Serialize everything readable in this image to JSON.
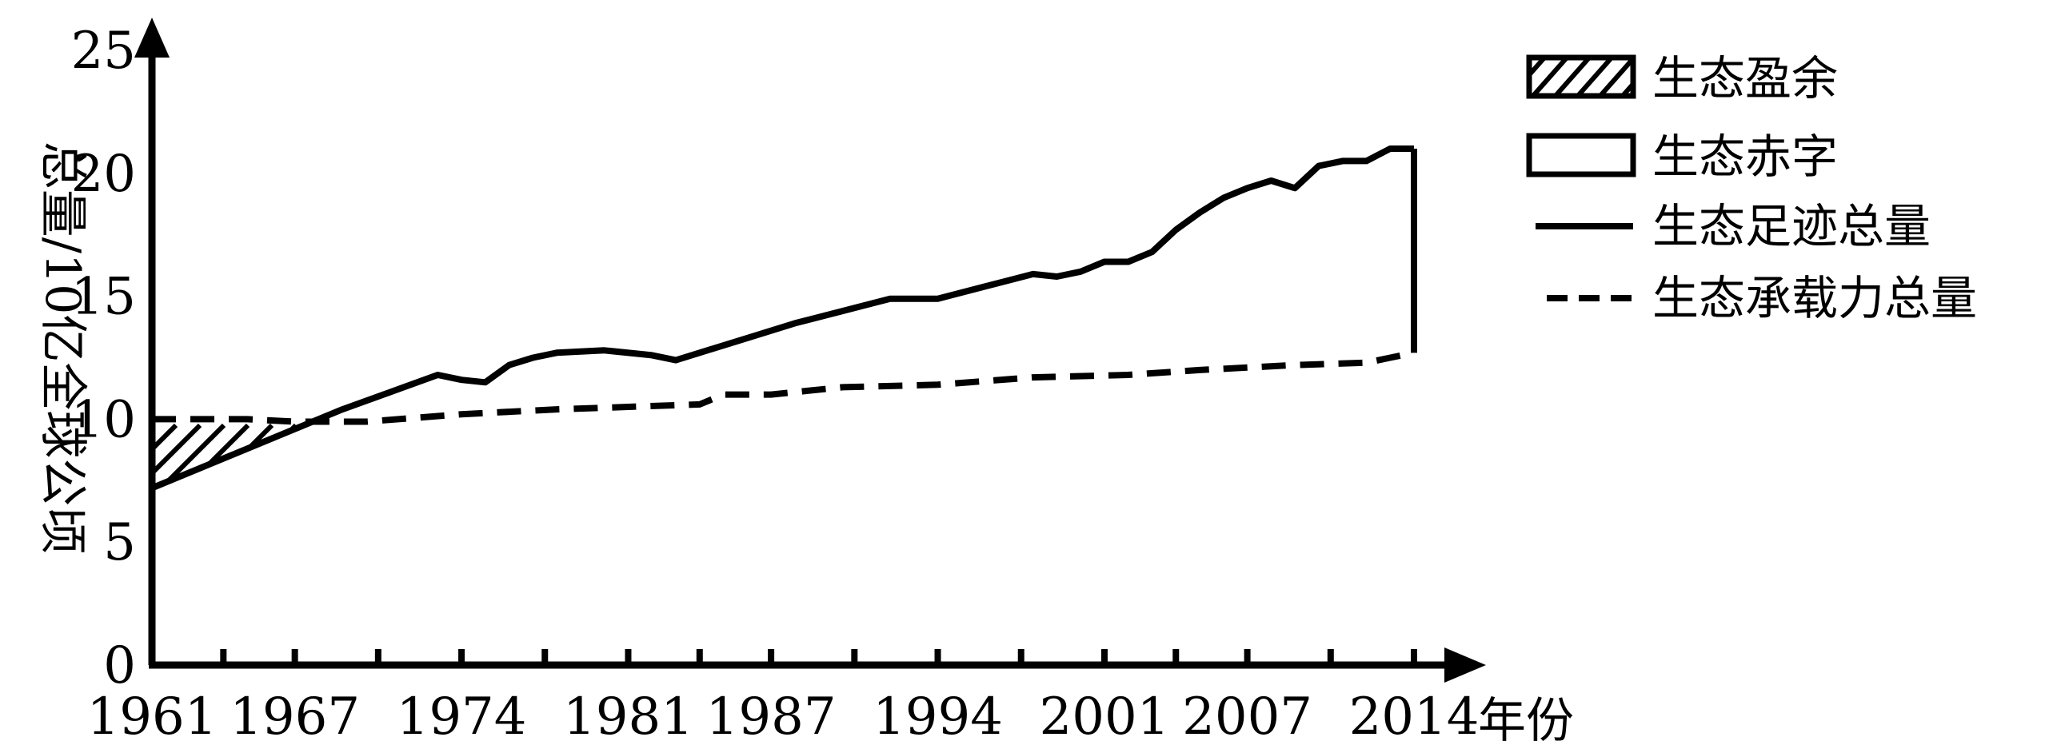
{
  "chart_data": {
    "type": "line",
    "xlabel": "年份",
    "ylabel": "总量/10亿全球公顷",
    "xlim": [
      1961,
      2014
    ],
    "ylim": [
      0,
      25
    ],
    "xticks": [
      1961,
      1967,
      1974,
      1981,
      1987,
      1994,
      2001,
      2007,
      2014
    ],
    "yticks": [
      0,
      5,
      10,
      15,
      20,
      25
    ],
    "legend_position": "top-right",
    "legend": [
      {
        "key": "surplus",
        "label": "生态盈余",
        "style": "hatched"
      },
      {
        "key": "deficit",
        "label": "生态赤字",
        "style": "open-box"
      },
      {
        "key": "footprint",
        "label": "生态足迹总量",
        "style": "solid-line"
      },
      {
        "key": "capacity",
        "label": "生态承载力总量",
        "style": "dashed-line"
      }
    ],
    "series": [
      {
        "key": "footprint",
        "x": [
          1961,
          1963,
          1965,
          1967,
          1969,
          1971,
          1973,
          1974,
          1975,
          1976,
          1977,
          1978,
          1980,
          1982,
          1983,
          1984,
          1986,
          1988,
          1990,
          1992,
          1993,
          1994,
          1996,
          1998,
          1999,
          2000,
          2001,
          2002,
          2003,
          2004,
          2005,
          2006,
          2007,
          2008,
          2009,
          2010,
          2011,
          2012,
          2013,
          2014
        ],
        "y": [
          7.2,
          8.0,
          8.8,
          9.6,
          10.4,
          11.1,
          11.8,
          11.6,
          11.5,
          12.2,
          12.5,
          12.7,
          12.8,
          12.6,
          12.4,
          12.7,
          13.3,
          13.9,
          14.4,
          14.9,
          14.9,
          14.9,
          15.4,
          15.9,
          15.8,
          16.0,
          16.4,
          16.4,
          16.8,
          17.7,
          18.4,
          19.0,
          19.4,
          19.7,
          19.4,
          20.3,
          20.5,
          20.5,
          21.0,
          21.0
        ]
      },
      {
        "key": "capacity",
        "x": [
          1961,
          1965,
          1967,
          1970,
          1974,
          1978,
          1984,
          1985,
          1987,
          1990,
          1994,
          1998,
          2002,
          2005,
          2009,
          2012,
          2013,
          2014
        ],
        "y": [
          10.0,
          10.0,
          9.9,
          9.9,
          10.2,
          10.4,
          10.6,
          11.0,
          11.0,
          11.3,
          11.4,
          11.7,
          11.8,
          12.0,
          12.2,
          12.3,
          12.5,
          12.7
        ]
      }
    ]
  }
}
